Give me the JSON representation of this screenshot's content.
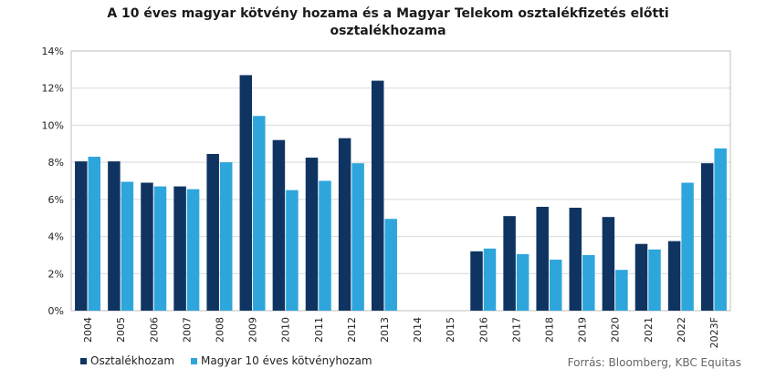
{
  "chart_data": {
    "type": "bar",
    "title_line1": "A 10 éves magyar kötvény hozama és a Magyar Telekom osztalékfizetés előtti",
    "title_line2": "osztalékhozama",
    "categories": [
      "2004",
      "2005",
      "2006",
      "2007",
      "2008",
      "2009",
      "2010",
      "2011",
      "2012",
      "2013",
      "2014",
      "2015",
      "2016",
      "2017",
      "2018",
      "2019",
      "2020",
      "2021",
      "2022",
      "2023F"
    ],
    "series": [
      {
        "name": "Osztalékhozam",
        "color": "#0f3461",
        "values": [
          8.05,
          8.05,
          6.9,
          6.7,
          8.45,
          12.7,
          9.2,
          8.25,
          9.3,
          12.4,
          null,
          null,
          3.2,
          5.1,
          5.6,
          5.55,
          5.05,
          3.6,
          3.75,
          7.95
        ]
      },
      {
        "name": "Magyar 10 éves kötvényhozam",
        "color": "#2ea6dc",
        "values": [
          8.3,
          6.95,
          6.7,
          6.55,
          8.0,
          10.5,
          6.5,
          7.0,
          7.95,
          4.95,
          null,
          null,
          3.35,
          3.05,
          2.75,
          3.0,
          2.2,
          3.3,
          6.9,
          8.75
        ]
      }
    ],
    "ylim": [
      0,
      14
    ],
    "yticks": [
      "0%",
      "2%",
      "4%",
      "6%",
      "8%",
      "10%",
      "12%",
      "14%"
    ],
    "grid": true,
    "legend_position": "bottom-left"
  },
  "source": "Forrás: Bloomberg, KBC Equitas"
}
